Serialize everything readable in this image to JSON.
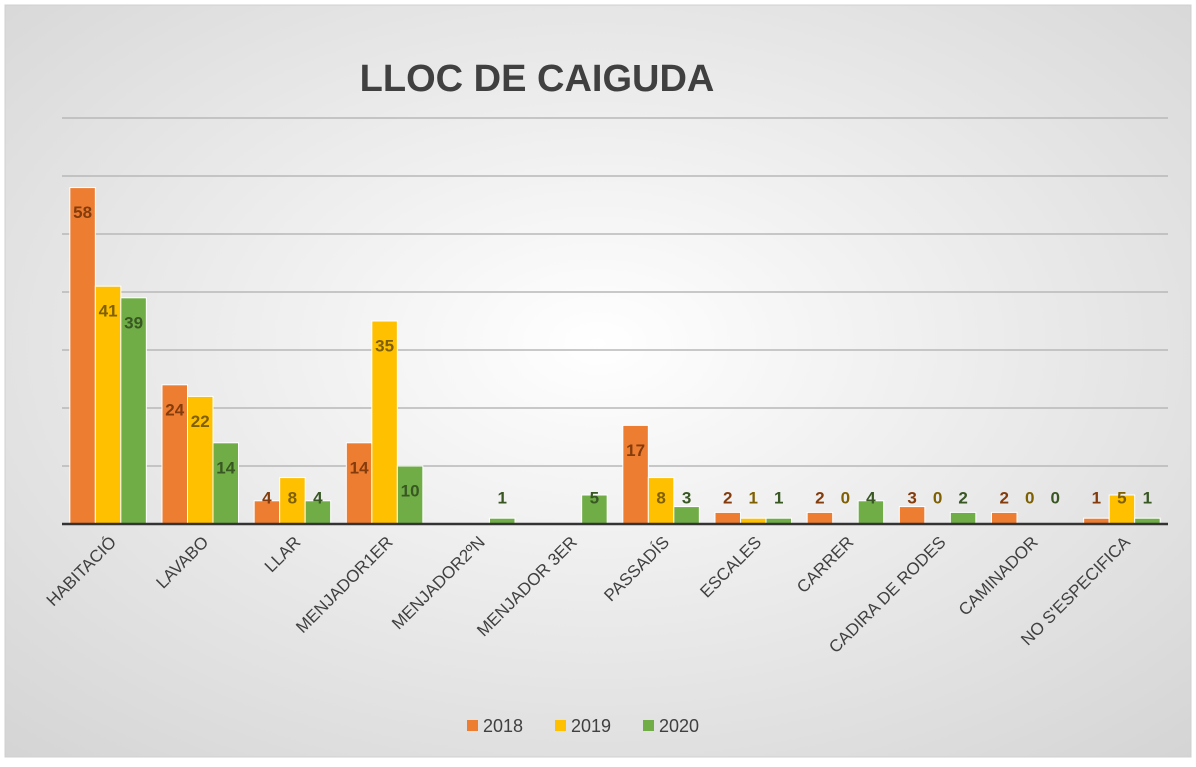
{
  "chart_data": {
    "type": "bar",
    "title": "LLOC DE CAIGUDA",
    "categories": [
      "HABITACIÓ",
      "LAVABO",
      "LLAR",
      "MENJADOR1ER",
      "MENJADOR2ºN",
      "MENJADOR 3ER",
      "PASSADÍS",
      "ESCALES",
      "CARRER",
      "CADIRA DE RODES",
      "CAMINADOR",
      "NO S'ESPECIFICA"
    ],
    "series": [
      {
        "name": "2018",
        "color": "#ed7d31",
        "label_color": "#843c0c",
        "values": [
          58,
          24,
          4,
          14,
          null,
          null,
          17,
          2,
          2,
          3,
          2,
          1
        ]
      },
      {
        "name": "2019",
        "color": "#ffc000",
        "label_color": "#7f6000",
        "values": [
          41,
          22,
          8,
          35,
          null,
          null,
          8,
          1,
          0,
          0,
          0,
          5
        ]
      },
      {
        "name": "2020",
        "color": "#70ad47",
        "label_color": "#385723",
        "values": [
          39,
          14,
          4,
          10,
          1,
          5,
          3,
          1,
          4,
          2,
          0,
          1
        ]
      }
    ],
    "ylim": [
      0,
      70
    ],
    "yticks": [
      0,
      10,
      20,
      30,
      40,
      50,
      60,
      70
    ],
    "grid": true,
    "legend": "bottom"
  }
}
